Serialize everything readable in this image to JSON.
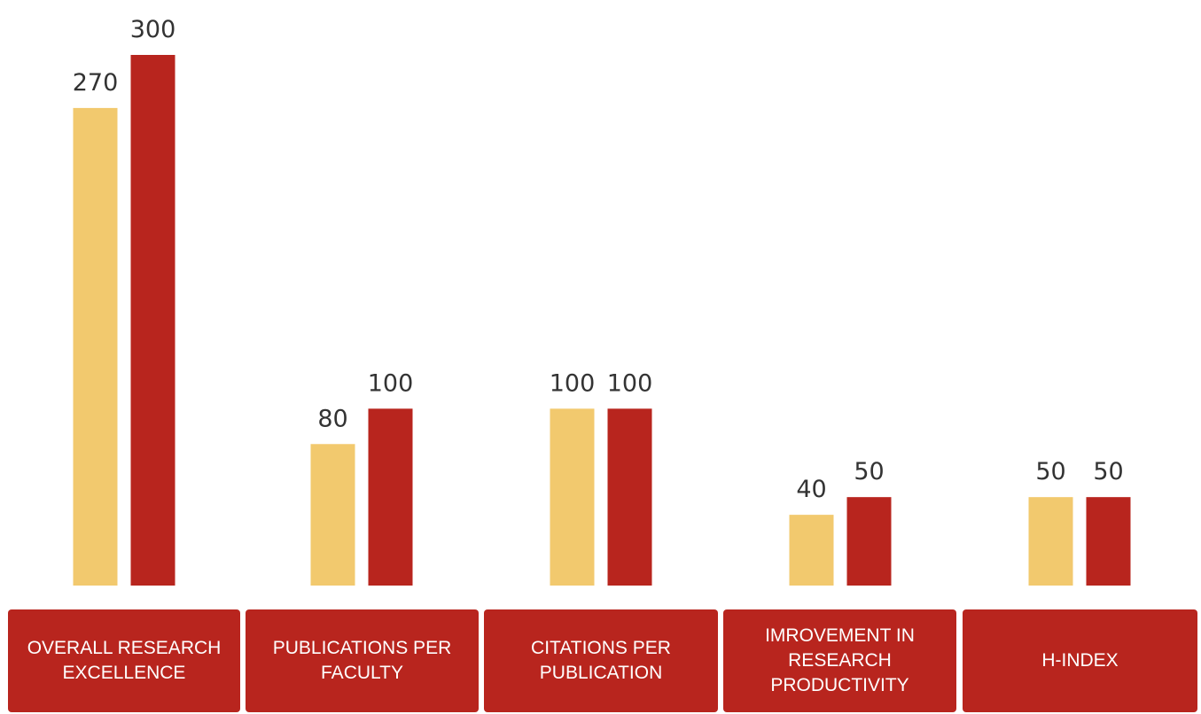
{
  "chart_data": {
    "type": "bar",
    "title": "",
    "xlabel": "",
    "ylabel": "",
    "categories": [
      "OVERALL RESEARCH\nEXCELLENCE",
      "PUBLICATIONS PER\nFACULTY",
      "CITATIONS PER\nPUBLICATION",
      "IMROVEMENT IN\nRESEARCH\nPRODUCTIVITY",
      "H-INDEX"
    ],
    "series": [
      {
        "color": "#f2c96e",
        "values": [
          270,
          80,
          100,
          40,
          50
        ]
      },
      {
        "color": "#b8251e",
        "values": [
          300,
          100,
          100,
          50,
          50
        ]
      }
    ],
    "ylim": [
      0,
      300
    ],
    "grid": false,
    "legend": "none",
    "data_labels": true
  }
}
